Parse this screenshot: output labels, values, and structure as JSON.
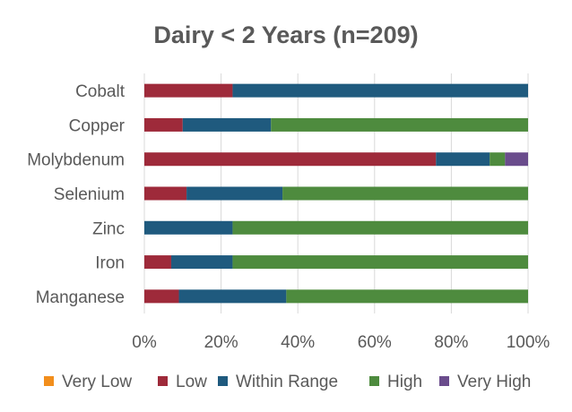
{
  "chart_data": {
    "type": "bar",
    "orientation": "horizontal",
    "stacked": "percent",
    "title": "Dairy < 2 Years (n=209)",
    "categories": [
      "Cobalt",
      "Copper",
      "Molybdenum",
      "Selenium",
      "Zinc",
      "Iron",
      "Manganese"
    ],
    "series": [
      {
        "name": "Very Low",
        "color": "#f28e1c",
        "values": [
          0,
          0,
          0,
          0,
          0,
          0,
          0
        ]
      },
      {
        "name": "Low",
        "color": "#9e2a3a",
        "values": [
          23,
          10,
          76,
          11,
          0,
          7,
          9
        ]
      },
      {
        "name": "Within Range",
        "color": "#1f5a7e",
        "values": [
          77,
          23,
          14,
          25,
          23,
          16,
          28
        ]
      },
      {
        "name": "High",
        "color": "#4e8b3e",
        "values": [
          0,
          67,
          4,
          64,
          77,
          77,
          63
        ]
      },
      {
        "name": "Very High",
        "color": "#6a4c8c",
        "values": [
          0,
          0,
          6,
          0,
          0,
          0,
          0
        ]
      }
    ],
    "xlim": [
      0,
      100
    ],
    "xticks": [
      "0%",
      "20%",
      "40%",
      "60%",
      "80%",
      "100%"
    ],
    "grid": true,
    "legend_position": "bottom"
  }
}
